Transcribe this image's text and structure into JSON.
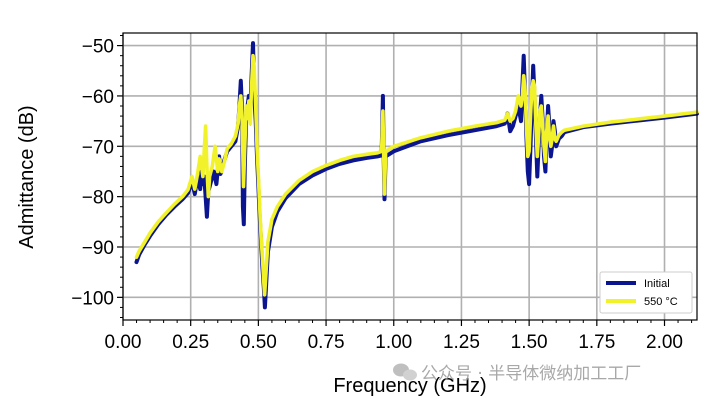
{
  "chart_data": {
    "type": "line",
    "xlabel": "Frequency (GHz)",
    "ylabel": "Admittance (dB)",
    "xlim": [
      0.0,
      2.12
    ],
    "ylim": [
      -104.5,
      -47.5
    ],
    "xticks": [
      0.0,
      0.25,
      0.5,
      0.75,
      1.0,
      1.25,
      1.5,
      1.75,
      2.0
    ],
    "xtick_labels": [
      "0.00",
      "0.25",
      "0.50",
      "0.75",
      "1.00",
      "1.25",
      "1.50",
      "1.75",
      "2.00"
    ],
    "yticks": [
      -100,
      -90,
      -80,
      -70,
      -60,
      -50
    ],
    "ytick_labels": [
      "−100",
      "−90",
      "−80",
      "−70",
      "−60",
      "−50"
    ],
    "grid": true,
    "legend_position": "bottom-right",
    "series": [
      {
        "name": "Initial",
        "color": "#0b1590",
        "points": [
          [
            0.05,
            -93.0
          ],
          [
            0.06,
            -91.5
          ],
          [
            0.08,
            -89.5
          ],
          [
            0.1,
            -87.8
          ],
          [
            0.13,
            -85.5
          ],
          [
            0.16,
            -83.6
          ],
          [
            0.19,
            -82.0
          ],
          [
            0.22,
            -80.5
          ],
          [
            0.24,
            -79.3
          ],
          [
            0.255,
            -77.0
          ],
          [
            0.265,
            -79.5
          ],
          [
            0.275,
            -76.0
          ],
          [
            0.285,
            -78.5
          ],
          [
            0.29,
            -75.0
          ],
          [
            0.295,
            -77.5
          ],
          [
            0.3,
            -76.0
          ],
          [
            0.305,
            -80.0
          ],
          [
            0.31,
            -84.0
          ],
          [
            0.315,
            -79.0
          ],
          [
            0.325,
            -77.0
          ],
          [
            0.335,
            -75.0
          ],
          [
            0.345,
            -77.5
          ],
          [
            0.355,
            -72.0
          ],
          [
            0.36,
            -75.5
          ],
          [
            0.37,
            -73.5
          ],
          [
            0.385,
            -71.0
          ],
          [
            0.4,
            -70.0
          ],
          [
            0.415,
            -69.0
          ],
          [
            0.425,
            -66.0
          ],
          [
            0.43,
            -62.0
          ],
          [
            0.435,
            -57.0
          ],
          [
            0.44,
            -63.0
          ],
          [
            0.443,
            -82.0
          ],
          [
            0.446,
            -85.5
          ],
          [
            0.45,
            -74.0
          ],
          [
            0.455,
            -64.0
          ],
          [
            0.46,
            -62.0
          ],
          [
            0.465,
            -60.0
          ],
          [
            0.47,
            -63.0
          ],
          [
            0.475,
            -56.0
          ],
          [
            0.48,
            -49.5
          ],
          [
            0.485,
            -60.0
          ],
          [
            0.49,
            -65.0
          ],
          [
            0.495,
            -72.0
          ],
          [
            0.5,
            -78.0
          ],
          [
            0.505,
            -84.0
          ],
          [
            0.51,
            -89.0
          ],
          [
            0.515,
            -94.0
          ],
          [
            0.52,
            -98.0
          ],
          [
            0.524,
            -102.0
          ],
          [
            0.528,
            -98.0
          ],
          [
            0.535,
            -91.0
          ],
          [
            0.55,
            -86.0
          ],
          [
            0.57,
            -83.0
          ],
          [
            0.6,
            -80.3
          ],
          [
            0.65,
            -77.5
          ],
          [
            0.7,
            -75.8
          ],
          [
            0.75,
            -74.5
          ],
          [
            0.8,
            -73.5
          ],
          [
            0.85,
            -72.8
          ],
          [
            0.9,
            -72.3
          ],
          [
            0.94,
            -72.0
          ],
          [
            0.955,
            -71.8
          ],
          [
            0.96,
            -60.0
          ],
          [
            0.962,
            -70.0
          ],
          [
            0.966,
            -80.5
          ],
          [
            0.97,
            -72.0
          ],
          [
            1.0,
            -71.0
          ],
          [
            1.1,
            -69.0
          ],
          [
            1.2,
            -67.8
          ],
          [
            1.3,
            -66.8
          ],
          [
            1.38,
            -66.0
          ],
          [
            1.41,
            -65.5
          ],
          [
            1.42,
            -63.5
          ],
          [
            1.43,
            -67.0
          ],
          [
            1.44,
            -66.0
          ],
          [
            1.45,
            -64.0
          ],
          [
            1.46,
            -62.0
          ],
          [
            1.47,
            -65.0
          ],
          [
            1.475,
            -58.0
          ],
          [
            1.48,
            -52.0
          ],
          [
            1.485,
            -60.0
          ],
          [
            1.49,
            -68.0
          ],
          [
            1.495,
            -75.0
          ],
          [
            1.5,
            -77.5
          ],
          [
            1.505,
            -70.0
          ],
          [
            1.51,
            -62.0
          ],
          [
            1.515,
            -54.0
          ],
          [
            1.52,
            -60.0
          ],
          [
            1.525,
            -68.0
          ],
          [
            1.53,
            -76.0
          ],
          [
            1.535,
            -70.0
          ],
          [
            1.54,
            -64.0
          ],
          [
            1.545,
            -60.0
          ],
          [
            1.55,
            -65.0
          ],
          [
            1.555,
            -72.0
          ],
          [
            1.56,
            -75.0
          ],
          [
            1.565,
            -68.0
          ],
          [
            1.57,
            -62.0
          ],
          [
            1.575,
            -66.0
          ],
          [
            1.58,
            -72.0
          ],
          [
            1.585,
            -70.0
          ],
          [
            1.59,
            -65.0
          ],
          [
            1.595,
            -67.0
          ],
          [
            1.6,
            -70.0
          ],
          [
            1.61,
            -68.5
          ],
          [
            1.62,
            -68.0
          ],
          [
            1.63,
            -67.2
          ],
          [
            1.7,
            -66.2
          ],
          [
            1.8,
            -65.5
          ],
          [
            1.9,
            -64.9
          ],
          [
            2.0,
            -64.3
          ],
          [
            2.12,
            -63.5
          ]
        ]
      },
      {
        "name": "550 °C",
        "color": "#f2f22a",
        "points": [
          [
            0.05,
            -92.0
          ],
          [
            0.06,
            -90.8
          ],
          [
            0.08,
            -89.0
          ],
          [
            0.1,
            -87.2
          ],
          [
            0.13,
            -85.0
          ],
          [
            0.16,
            -83.2
          ],
          [
            0.19,
            -81.5
          ],
          [
            0.22,
            -80.0
          ],
          [
            0.24,
            -78.6
          ],
          [
            0.255,
            -76.0
          ],
          [
            0.265,
            -78.5
          ],
          [
            0.275,
            -75.5
          ],
          [
            0.285,
            -72.0
          ],
          [
            0.295,
            -76.0
          ],
          [
            0.3,
            -71.0
          ],
          [
            0.305,
            -66.0
          ],
          [
            0.31,
            -74.0
          ],
          [
            0.315,
            -80.0
          ],
          [
            0.32,
            -76.0
          ],
          [
            0.33,
            -74.0
          ],
          [
            0.34,
            -70.0
          ],
          [
            0.35,
            -75.0
          ],
          [
            0.355,
            -72.5
          ],
          [
            0.365,
            -75.0
          ],
          [
            0.375,
            -73.0
          ],
          [
            0.385,
            -70.5
          ],
          [
            0.4,
            -69.5
          ],
          [
            0.415,
            -68.0
          ],
          [
            0.425,
            -65.5
          ],
          [
            0.43,
            -62.0
          ],
          [
            0.435,
            -60.0
          ],
          [
            0.44,
            -64.0
          ],
          [
            0.445,
            -78.0
          ],
          [
            0.45,
            -70.0
          ],
          [
            0.455,
            -62.0
          ],
          [
            0.46,
            -64.5
          ],
          [
            0.465,
            -61.0
          ],
          [
            0.47,
            -65.5
          ],
          [
            0.475,
            -58.0
          ],
          [
            0.48,
            -52.0
          ],
          [
            0.485,
            -55.0
          ],
          [
            0.49,
            -62.0
          ],
          [
            0.495,
            -70.0
          ],
          [
            0.5,
            -76.0
          ],
          [
            0.505,
            -82.0
          ],
          [
            0.51,
            -88.0
          ],
          [
            0.515,
            -92.0
          ],
          [
            0.52,
            -97.0
          ],
          [
            0.523,
            -99.5
          ],
          [
            0.527,
            -96.0
          ],
          [
            0.535,
            -89.0
          ],
          [
            0.55,
            -84.5
          ],
          [
            0.57,
            -82.0
          ],
          [
            0.6,
            -79.5
          ],
          [
            0.65,
            -76.8
          ],
          [
            0.7,
            -75.0
          ],
          [
            0.75,
            -73.8
          ],
          [
            0.8,
            -72.8
          ],
          [
            0.85,
            -72.0
          ],
          [
            0.9,
            -71.6
          ],
          [
            0.94,
            -71.3
          ],
          [
            0.955,
            -71.0
          ],
          [
            0.96,
            -63.0
          ],
          [
            0.962,
            -70.0
          ],
          [
            0.966,
            -79.5
          ],
          [
            0.97,
            -71.0
          ],
          [
            1.0,
            -70.0
          ],
          [
            1.1,
            -68.3
          ],
          [
            1.2,
            -67.0
          ],
          [
            1.3,
            -66.0
          ],
          [
            1.38,
            -65.3
          ],
          [
            1.41,
            -64.8
          ],
          [
            1.42,
            -63.5
          ],
          [
            1.43,
            -65.0
          ],
          [
            1.44,
            -64.5
          ],
          [
            1.45,
            -63.0
          ],
          [
            1.46,
            -60.0
          ],
          [
            1.47,
            -62.0
          ],
          [
            1.475,
            -60.0
          ],
          [
            1.48,
            -56.0
          ],
          [
            1.485,
            -59.0
          ],
          [
            1.49,
            -66.0
          ],
          [
            1.495,
            -72.0
          ],
          [
            1.5,
            -71.0
          ],
          [
            1.505,
            -64.0
          ],
          [
            1.51,
            -59.0
          ],
          [
            1.515,
            -57.0
          ],
          [
            1.52,
            -58.0
          ],
          [
            1.525,
            -66.0
          ],
          [
            1.53,
            -72.0
          ],
          [
            1.535,
            -68.0
          ],
          [
            1.54,
            -63.0
          ],
          [
            1.545,
            -62.0
          ],
          [
            1.55,
            -66.0
          ],
          [
            1.555,
            -70.0
          ],
          [
            1.56,
            -73.0
          ],
          [
            1.565,
            -67.0
          ],
          [
            1.57,
            -64.0
          ],
          [
            1.575,
            -68.0
          ],
          [
            1.58,
            -70.0
          ],
          [
            1.585,
            -68.5
          ],
          [
            1.59,
            -66.0
          ],
          [
            1.595,
            -68.5
          ],
          [
            1.6,
            -69.0
          ],
          [
            1.61,
            -67.8
          ],
          [
            1.62,
            -67.2
          ],
          [
            1.63,
            -66.8
          ],
          [
            1.7,
            -66.0
          ],
          [
            1.8,
            -65.2
          ],
          [
            1.9,
            -64.6
          ],
          [
            2.0,
            -64.0
          ],
          [
            2.12,
            -63.2
          ]
        ]
      }
    ]
  },
  "watermark": {
    "icon": "wechat-icon",
    "text": "公众号 · 半导体微纳加工工厂"
  }
}
